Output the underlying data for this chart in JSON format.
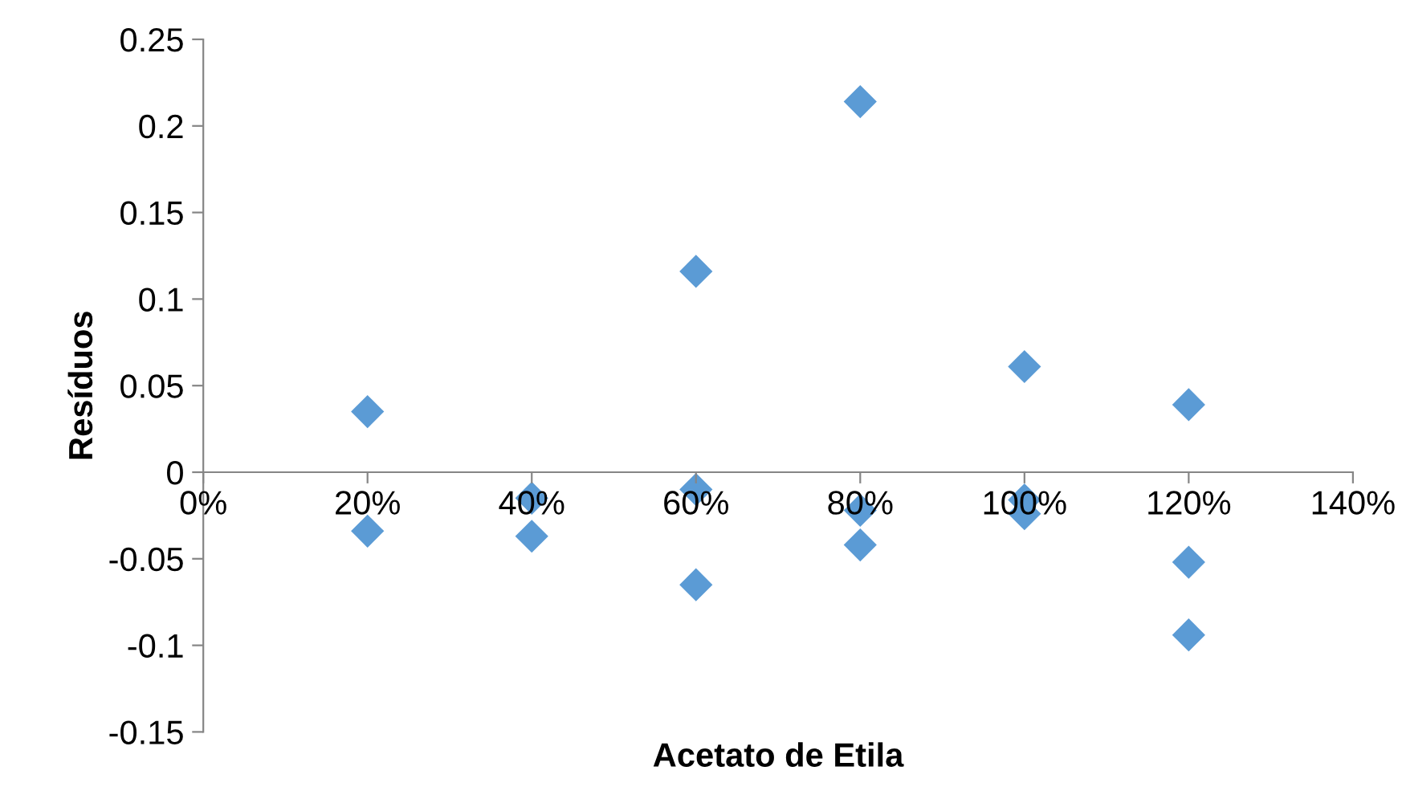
{
  "chart_data": {
    "type": "scatter",
    "xlabel": "Acetato de Etila",
    "ylabel": "Resíduos",
    "x": [
      0.2,
      0.2,
      0.4,
      0.4,
      0.6,
      0.6,
      0.6,
      0.8,
      0.8,
      0.8,
      1.0,
      1.0,
      1.0,
      1.2,
      1.2,
      1.2
    ],
    "series": [
      {
        "color": "#5b9bd5",
        "values": [
          0.035,
          -0.034,
          -0.015,
          -0.037,
          0.116,
          -0.01,
          -0.065,
          0.214,
          -0.022,
          -0.042,
          0.061,
          -0.016,
          -0.024,
          0.039,
          -0.052,
          -0.094
        ]
      }
    ],
    "marker": "diamond",
    "grid": false,
    "legend": false,
    "xlim": [
      0,
      1.4
    ],
    "ylim": [
      -0.15,
      0.25
    ],
    "xticks": [
      {
        "value": 0,
        "label": "0%"
      },
      {
        "value": 0.2,
        "label": "20%"
      },
      {
        "value": 0.4,
        "label": "40%"
      },
      {
        "value": 0.6,
        "label": "60%"
      },
      {
        "value": 0.8,
        "label": "80%"
      },
      {
        "value": 1.0,
        "label": "100%"
      },
      {
        "value": 1.2,
        "label": "120%"
      },
      {
        "value": 1.4,
        "label": "140%"
      }
    ],
    "yticks": [
      -0.15,
      -0.1,
      -0.05,
      0,
      0.05,
      0.1,
      0.15,
      0.2,
      0.25
    ]
  }
}
